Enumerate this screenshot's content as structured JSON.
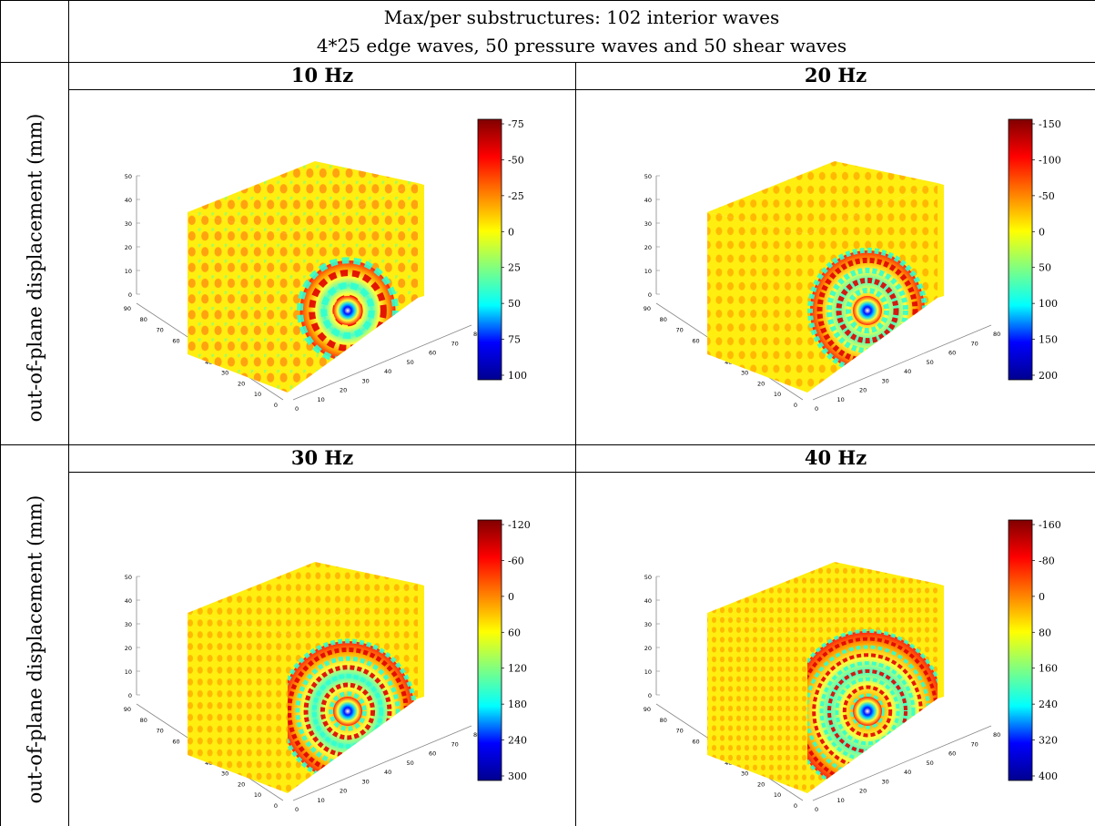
{
  "header": {
    "line1": "Max/per substructures: 102 interior waves",
    "line2": "4*25 edge waves, 50 pressure waves and 50 shear waves"
  },
  "row_labels": [
    "out-of-plane displacement (mm)",
    "out-of-plane displacement (mm)"
  ],
  "axes": {
    "z_ticks": [
      "0",
      "10",
      "20",
      "30",
      "40",
      "50"
    ],
    "y_ticks": [
      "0",
      "10",
      "20",
      "30",
      "40",
      "50",
      "60",
      "70",
      "80",
      "90"
    ],
    "x_ticks": [
      "0",
      "10",
      "20",
      "30",
      "40",
      "50",
      "60",
      "70",
      "80"
    ]
  },
  "colormap": [
    "#00008f",
    "#0000ff",
    "#00ffff",
    "#80ff80",
    "#ffff00",
    "#ff8000",
    "#ff0000",
    "#800000"
  ],
  "chart_data": [
    {
      "type": "heatmap",
      "title": "10 Hz",
      "description_ticks_ordered_top_to_bottom": true,
      "colorbar_ticks": [
        "-75",
        "-50",
        "-25",
        "0",
        "25",
        "50",
        "75",
        "100"
      ],
      "rings": 4
    },
    {
      "type": "heatmap",
      "title": "20 Hz",
      "description_ticks_ordered_top_to_bottom": true,
      "colorbar_ticks": [
        "-150",
        "-100",
        "-50",
        "0",
        "50",
        "100",
        "150",
        "200"
      ],
      "rings": 6
    },
    {
      "type": "heatmap",
      "title": "30 Hz",
      "description_ticks_ordered_top_to_bottom": true,
      "colorbar_ticks": [
        "-120",
        "-60",
        "0",
        "60",
        "120",
        "180",
        "240",
        "300"
      ],
      "rings": 8
    },
    {
      "type": "heatmap",
      "title": "40 Hz",
      "description_ticks_ordered_top_to_bottom": true,
      "colorbar_ticks": [
        "-160",
        "-80",
        "0",
        "80",
        "160",
        "240",
        "320",
        "400"
      ],
      "rings": 10
    }
  ]
}
